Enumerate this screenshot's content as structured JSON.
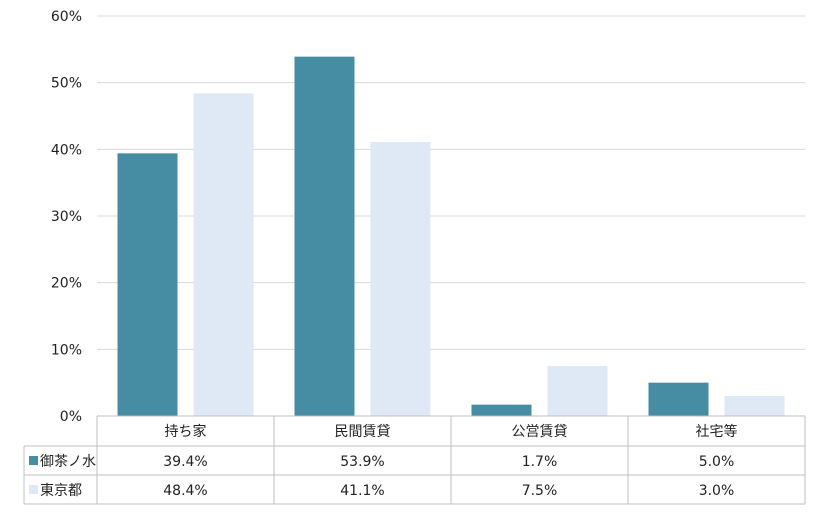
{
  "chart_data": {
    "type": "bar",
    "categories": [
      "持ち家",
      "民間賃貸",
      "公営賃貸",
      "社宅等"
    ],
    "series": [
      {
        "name": "御茶ノ水",
        "values": [
          39.4,
          53.9,
          1.7,
          5.0
        ],
        "labels": [
          "39.4%",
          "53.9%",
          "1.7%",
          "5.0%"
        ],
        "color": "#468CA3"
      },
      {
        "name": "東京都",
        "values": [
          48.4,
          41.1,
          7.5,
          3.0
        ],
        "labels": [
          "48.4%",
          "41.1%",
          "7.5%",
          "3.0%"
        ],
        "color": "#DEE9F5"
      }
    ],
    "yticks": [
      "0%",
      "10%",
      "20%",
      "30%",
      "40%",
      "50%",
      "60%"
    ],
    "ylim": [
      0,
      60
    ],
    "ytick_step": 10,
    "grid": true,
    "legend": "data-table",
    "colors": {
      "grid": "#D9D9D9",
      "axis": "#BFBFBF"
    }
  }
}
